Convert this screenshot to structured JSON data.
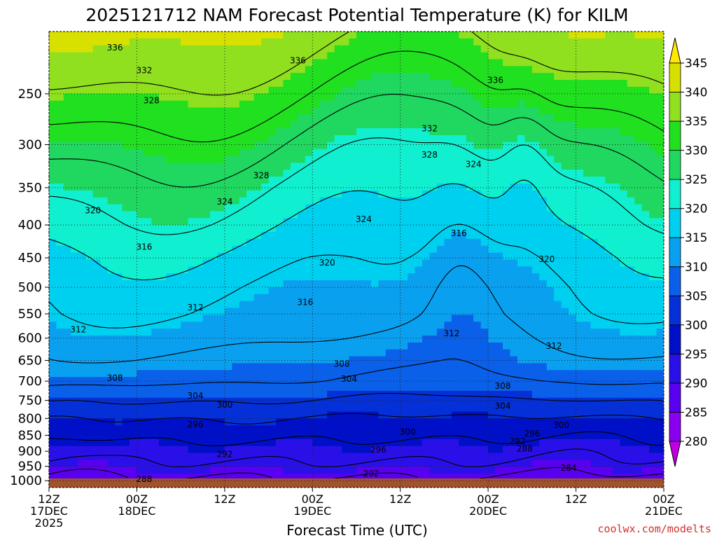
{
  "chart_data": {
    "type": "heatmap",
    "title": "2025121712 NAM Forecast Potential Temperature (K) for KILM",
    "xlabel": "Forecast Time (UTC)",
    "ylabel": "",
    "y_axis_scale": "log-pressure, inverted",
    "ylim": [
      1025,
      200
    ],
    "xlim": [
      0,
      84
    ],
    "grid": "dotted",
    "y_ticks": [
      250,
      300,
      350,
      400,
      450,
      500,
      550,
      600,
      650,
      700,
      750,
      800,
      850,
      900,
      950,
      1000
    ],
    "x_ticks": [
      {
        "hour": 0,
        "lines": [
          "12Z",
          "17DEC",
          "2025"
        ]
      },
      {
        "hour": 12,
        "lines": [
          "00Z",
          "18DEC"
        ]
      },
      {
        "hour": 24,
        "lines": [
          "12Z"
        ]
      },
      {
        "hour": 36,
        "lines": [
          "00Z",
          "19DEC"
        ]
      },
      {
        "hour": 48,
        "lines": [
          "12Z"
        ]
      },
      {
        "hour": 60,
        "lines": [
          "00Z",
          "20DEC"
        ]
      },
      {
        "hour": 72,
        "lines": [
          "12Z"
        ]
      },
      {
        "hour": 84,
        "lines": [
          "00Z",
          "21DEC"
        ]
      }
    ],
    "colorbar": {
      "labels": [
        "280",
        "285",
        "290",
        "295",
        "300",
        "305",
        "310",
        "315",
        "320",
        "325",
        "330",
        "335",
        "340",
        "345"
      ],
      "values": [
        280,
        285,
        290,
        295,
        300,
        305,
        310,
        315,
        320,
        325,
        330,
        335,
        340,
        345
      ],
      "colors": [
        "#c000e0",
        "#8a00f0",
        "#5a00f0",
        "#2a10e8",
        "#0010c8",
        "#0530d8",
        "#0a60e8",
        "#0aa0f0",
        "#00d0f0",
        "#10f0d0",
        "#20d860",
        "#20e020",
        "#90e020",
        "#d8e000",
        "#ffe800"
      ]
    },
    "profile_levels_hpa": [
      1000,
      975,
      950,
      925,
      900,
      875,
      850,
      800,
      750,
      700,
      650,
      600,
      550,
      500,
      450,
      400,
      350,
      300,
      250,
      200
    ],
    "profile_base_theta_k": [
      287,
      289,
      291,
      292.5,
      294,
      295.5,
      297,
      300,
      304,
      308,
      310.5,
      312.5,
      314.5,
      316,
      318,
      321,
      324,
      328,
      333,
      339
    ],
    "contour_levels": [
      284,
      288,
      292,
      296,
      300,
      304,
      308,
      312,
      316,
      320,
      324,
      328,
      332,
      336
    ],
    "contour_labels": [
      {
        "text": "336",
        "hour": 9,
        "p": 212
      },
      {
        "text": "336",
        "hour": 34,
        "p": 222
      },
      {
        "text": "336",
        "hour": 61,
        "p": 238
      },
      {
        "text": "332",
        "hour": 13,
        "p": 230
      },
      {
        "text": "332",
        "hour": 52,
        "p": 283
      },
      {
        "text": "328",
        "hour": 14,
        "p": 256
      },
      {
        "text": "328",
        "hour": 29,
        "p": 335
      },
      {
        "text": "328",
        "hour": 52,
        "p": 311
      },
      {
        "text": "324",
        "hour": 58,
        "p": 322
      },
      {
        "text": "324",
        "hour": 24,
        "p": 368
      },
      {
        "text": "324",
        "hour": 43,
        "p": 392
      },
      {
        "text": "320",
        "hour": 6,
        "p": 380
      },
      {
        "text": "320",
        "hour": 38,
        "p": 458
      },
      {
        "text": "320",
        "hour": 68,
        "p": 452
      },
      {
        "text": "316",
        "hour": 13,
        "p": 433
      },
      {
        "text": "316",
        "hour": 56,
        "p": 412
      },
      {
        "text": "316",
        "hour": 35,
        "p": 528
      },
      {
        "text": "312",
        "hour": 20,
        "p": 538
      },
      {
        "text": "312",
        "hour": 4,
        "p": 582
      },
      {
        "text": "312",
        "hour": 55,
        "p": 590
      },
      {
        "text": "312",
        "hour": 69,
        "p": 617
      },
      {
        "text": "308",
        "hour": 40,
        "p": 658
      },
      {
        "text": "308",
        "hour": 9,
        "p": 692
      },
      {
        "text": "308",
        "hour": 62,
        "p": 712
      },
      {
        "text": "304",
        "hour": 41,
        "p": 695
      },
      {
        "text": "304",
        "hour": 20,
        "p": 738
      },
      {
        "text": "304",
        "hour": 62,
        "p": 765
      },
      {
        "text": "300",
        "hour": 24,
        "p": 762
      },
      {
        "text": "300",
        "hour": 49,
        "p": 840
      },
      {
        "text": "300",
        "hour": 70,
        "p": 820
      },
      {
        "text": "296",
        "hour": 20,
        "p": 818
      },
      {
        "text": "296",
        "hour": 66,
        "p": 845
      },
      {
        "text": "296",
        "hour": 45,
        "p": 895
      },
      {
        "text": "292",
        "hour": 64,
        "p": 868
      },
      {
        "text": "292",
        "hour": 24,
        "p": 910
      },
      {
        "text": "292",
        "hour": 44,
        "p": 975
      },
      {
        "text": "288",
        "hour": 65,
        "p": 892
      },
      {
        "text": "288",
        "hour": 13,
        "p": 995
      },
      {
        "text": "284",
        "hour": 71,
        "p": 955
      }
    ]
  },
  "credit": "coolwx.com/modelts"
}
